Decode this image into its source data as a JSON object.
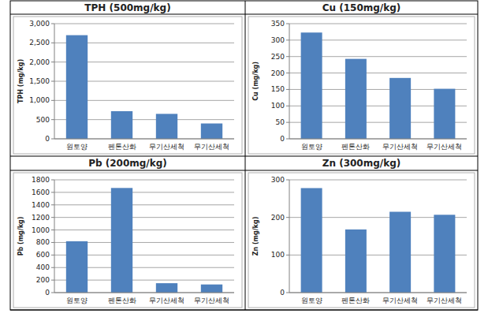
{
  "chart_data": [
    {
      "type": "bar",
      "title": "TPH (500mg/kg)",
      "y_label": "TPH (mg/kg)",
      "categories": [
        "원토양",
        "펜톤산화",
        "무기산세척",
        "무기산세척"
      ],
      "values": [
        2700,
        720,
        650,
        400
      ],
      "color": "#4f81bd",
      "ylim": [
        0,
        3000
      ],
      "yticks": [
        0,
        500,
        {
          "value": 1000,
          "label": "1,000"
        },
        {
          "value": 1500,
          "label": "1,500"
        },
        {
          "value": 2000,
          "label": "2,000"
        },
        {
          "value": 2500,
          "label": "2,500"
        },
        {
          "value": 3000,
          "label": "3,000"
        }
      ],
      "grid": true
    },
    {
      "type": "bar",
      "title": "Cu (150mg/kg)",
      "y_label": "Cu (mg/kg)",
      "categories": [
        "원토양",
        "펜톤산화",
        "무기산세척",
        "무기산세척"
      ],
      "values": [
        323,
        243,
        185,
        152
      ],
      "color": "#4f81bd",
      "ylim": [
        0,
        350
      ],
      "yticks": [
        0,
        50,
        100,
        150,
        200,
        250,
        300,
        350
      ],
      "grid": true
    },
    {
      "type": "bar",
      "title": "Pb (200mg/kg)",
      "y_label": "Pb (mg/kg)",
      "categories": [
        "원토양",
        "펜톤산화",
        "무기산세척",
        "무기산세척"
      ],
      "values": [
        820,
        1670,
        150,
        130
      ],
      "color": "#4f81bd",
      "ylim": [
        0,
        1800
      ],
      "yticks": [
        0,
        200,
        400,
        600,
        800,
        1000,
        1200,
        1400,
        1600,
        1800
      ],
      "grid": true
    },
    {
      "type": "bar",
      "title": "Zn (300mg/kg)",
      "y_label": "Zn (mg/kg)",
      "categories": [
        "원토양",
        "펜톤산화",
        "무기산세척",
        "무기산세척"
      ],
      "values": [
        278,
        168,
        215,
        207
      ],
      "color": "#4f81bd",
      "ylim": [
        0,
        300
      ],
      "yticks": [
        0,
        100,
        200,
        300
      ],
      "grid": true
    }
  ]
}
